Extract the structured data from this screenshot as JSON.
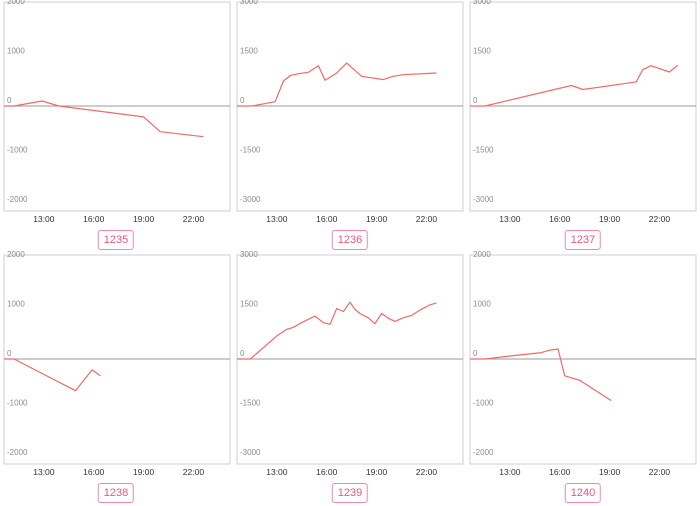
{
  "colors": {
    "line": "#f06a6a",
    "badge_border": "#f28aa6",
    "badge_text": "#e8587f",
    "frame": "#cfcfcf",
    "zero_line": "#9a9a9a"
  },
  "chart_data": [
    {
      "type": "line",
      "badge": "1235",
      "yticks": [
        2000,
        1000,
        0,
        -1000,
        -2000
      ],
      "ylim": [
        -2000,
        2000
      ],
      "xticks": [
        "13:00",
        "16:00",
        "19:00",
        "22:00"
      ],
      "xlim": [
        10.6,
        24.2
      ],
      "grid": false,
      "series": [
        {
          "x": [
            10.6,
            11.2,
            12.9,
            13.9,
            19.0,
            20.0,
            22.6
          ],
          "y": [
            0,
            0,
            100,
            0,
            -220,
            -520,
            -620
          ]
        }
      ]
    },
    {
      "type": "line",
      "badge": "1236",
      "yticks": [
        3000,
        1500,
        0,
        -1500,
        -3000
      ],
      "ylim": [
        -3000,
        3000
      ],
      "xticks": [
        "13:00",
        "16:00",
        "19:00",
        "22:00"
      ],
      "xlim": [
        10.6,
        24.2
      ],
      "grid": false,
      "series": [
        {
          "x": [
            10.6,
            11.5,
            12.9,
            13.4,
            13.8,
            14.3,
            14.9,
            15.5,
            15.9,
            16.6,
            17.2,
            18.1,
            19.4,
            20.0,
            20.6,
            22.6
          ],
          "y": [
            0,
            0,
            130,
            760,
            920,
            980,
            1020,
            1220,
            780,
            1000,
            1300,
            900,
            800,
            900,
            950,
            1000
          ]
        }
      ]
    },
    {
      "type": "line",
      "badge": "1237",
      "yticks": [
        3000,
        1500,
        0,
        -1500,
        -3000
      ],
      "ylim": [
        -3000,
        3000
      ],
      "xticks": [
        "13:00",
        "16:00",
        "19:00",
        "22:00"
      ],
      "xlim": [
        10.6,
        24.2
      ],
      "grid": false,
      "series": [
        {
          "x": [
            10.6,
            11.5,
            16.7,
            17.4,
            20.6,
            21.0,
            21.5,
            22.6,
            23.1
          ],
          "y": [
            0,
            0,
            620,
            500,
            730,
            1100,
            1220,
            1030,
            1230
          ]
        }
      ]
    },
    {
      "type": "line",
      "badge": "1238",
      "yticks": [
        2000,
        1000,
        0,
        -1000,
        -2000
      ],
      "ylim": [
        -2000,
        2000
      ],
      "xticks": [
        "13:00",
        "16:00",
        "19:00",
        "22:00"
      ],
      "xlim": [
        10.6,
        24.2
      ],
      "grid": false,
      "series": [
        {
          "x": [
            10.6,
            11.2,
            14.9,
            15.9,
            16.4
          ],
          "y": [
            0,
            0,
            -640,
            -220,
            -340
          ]
        }
      ]
    },
    {
      "type": "line",
      "badge": "1239",
      "yticks": [
        3000,
        1500,
        0,
        -1500,
        -3000
      ],
      "ylim": [
        -3000,
        3000
      ],
      "xticks": [
        "13:00",
        "16:00",
        "19:00",
        "22:00"
      ],
      "xlim": [
        10.6,
        24.2
      ],
      "grid": false,
      "series": [
        {
          "x": [
            10.6,
            11.4,
            13.0,
            13.6,
            14.0,
            14.4,
            14.8,
            15.3,
            15.8,
            16.2,
            16.6,
            17.0,
            17.4,
            17.7,
            18.0,
            18.5,
            18.9,
            19.3,
            19.7,
            20.1,
            20.6,
            21.1,
            21.6,
            22.2,
            22.6
          ],
          "y": [
            0,
            0,
            700,
            900,
            960,
            1080,
            1180,
            1300,
            1100,
            1050,
            1530,
            1440,
            1720,
            1500,
            1380,
            1250,
            1070,
            1380,
            1240,
            1140,
            1250,
            1320,
            1480,
            1640,
            1700
          ]
        }
      ]
    },
    {
      "type": "line",
      "badge": "1240",
      "yticks": [
        2000,
        1000,
        0,
        -1000,
        -2000
      ],
      "ylim": [
        -2000,
        2000
      ],
      "xticks": [
        "13:00",
        "16:00",
        "19:00",
        "22:00"
      ],
      "xlim": [
        10.6,
        24.2
      ],
      "grid": false,
      "series": [
        {
          "x": [
            10.6,
            11.5,
            13.0,
            14.9,
            15.4,
            15.9,
            16.3,
            17.2,
            19.1
          ],
          "y": [
            0,
            0,
            60,
            130,
            180,
            200,
            -340,
            -430,
            -840
          ]
        }
      ]
    }
  ]
}
